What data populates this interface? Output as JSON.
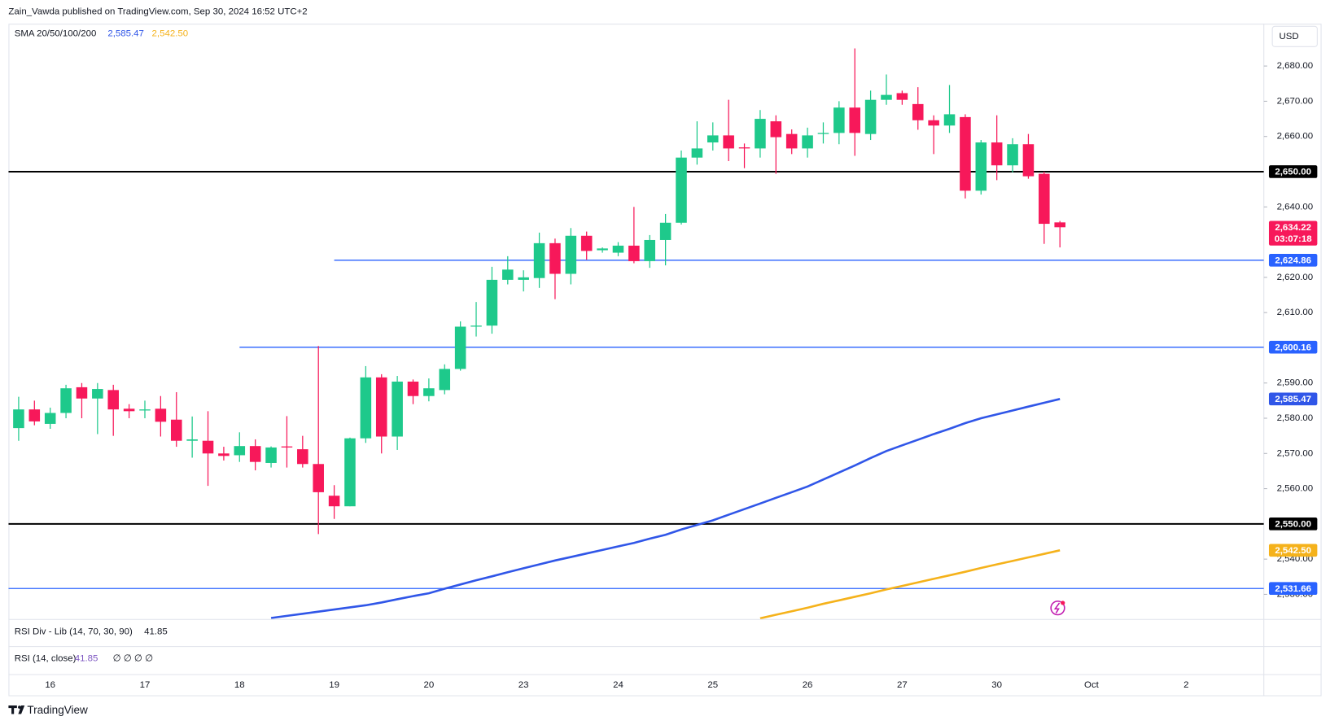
{
  "header": {
    "author_line": "Zain_Vawda published on TradingView.com, Sep 30, 2024 16:52 UTC+2"
  },
  "chart_data": {
    "type": "candlestick",
    "currency": "USD",
    "up_color": "#1ec98b",
    "down_color": "#f7185a",
    "categories": [
      null,
      null,
      "16",
      null,
      null,
      null,
      null,
      null,
      "17",
      null,
      null,
      null,
      null,
      null,
      "18",
      null,
      null,
      null,
      null,
      null,
      "19",
      null,
      null,
      null,
      null,
      null,
      "20",
      null,
      null,
      null,
      null,
      null,
      "23",
      null,
      null,
      null,
      null,
      null,
      "24",
      null,
      null,
      null,
      null,
      null,
      "25",
      null,
      null,
      null,
      null,
      null,
      "26",
      null,
      null,
      null,
      null,
      null,
      "27",
      null,
      null,
      null,
      null,
      null,
      "30",
      null,
      null,
      null,
      null,
      null,
      "Oct",
      null,
      null,
      null,
      null,
      null,
      "2",
      null,
      null,
      null,
      null
    ],
    "open": [
      2577.2,
      2582.5,
      2578.4,
      2581.5,
      2588.8,
      2585.6,
      2588.0,
      2582.7,
      2582.2,
      2582.7,
      2579.6,
      2573.6,
      2573.6,
      2570.0,
      2569.5,
      2572.1,
      2567.3,
      2572.0,
      2571.2,
      2567.0,
      2558.0,
      2555.0,
      2574.3,
      2591.6,
      2574.8,
      2590.4,
      2586.3,
      2588.0,
      2594.0,
      2606.0,
      2606.3,
      2619.3,
      2619.3,
      2619.8,
      2629.7,
      2621.0,
      2631.8,
      2627.7,
      2627.0,
      2629.0,
      2624.6,
      2630.6,
      2635.5,
      2654.0,
      2658.3,
      2660.3,
      2656.9,
      2656.6,
      2664.3,
      2660.7,
      2656.6,
      2660.7,
      2661.0,
      2668.2,
      2660.7,
      2670.4,
      2672.3,
      2669.2,
      2664.6,
      2663.1,
      2665.5,
      2644.6,
      2658.3,
      2651.8,
      2657.8,
      2649.4,
      2635.6,
      null,
      null,
      null,
      null,
      null,
      null,
      null,
      null,
      null,
      null,
      null,
      null
    ],
    "high": [
      2586.1,
      2585.0,
      2583.0,
      2589.5,
      2590.0,
      2590.0,
      2589.5,
      2584.0,
      2585.0,
      2586.3,
      2587.4,
      2580.5,
      2582.0,
      2571.9,
      2576.0,
      2574.0,
      2572.0,
      2580.6,
      2575.0,
      2600.5,
      2561.0,
      2574.5,
      2594.8,
      2592.5,
      2592.0,
      2591.0,
      2591.3,
      2595.3,
      2607.5,
      2613.0,
      2623.0,
      2626.0,
      2622.0,
      2632.7,
      2631.0,
      2634.0,
      2633.0,
      2628.5,
      2630.0,
      2640.0,
      2632.0,
      2638.0,
      2656.0,
      2664.3,
      2664.0,
      2670.4,
      2658.0,
      2667.5,
      2666.0,
      2662.0,
      2662.5,
      2664.0,
      2670.0,
      2685.0,
      2673.0,
      2677.6,
      2673.0,
      2674.0,
      2666.0,
      2674.6,
      2666.3,
      2659.0,
      2666.0,
      2659.5,
      2660.7,
      2650.0,
      2636.0,
      null,
      null,
      null,
      null,
      null,
      null,
      null,
      null,
      null,
      null,
      null,
      null
    ],
    "low": [
      2573.6,
      2578.0,
      2577.0,
      2580.0,
      2580.0,
      2575.5,
      2575.0,
      2580.0,
      2580.0,
      2574.8,
      2571.9,
      2568.8,
      2560.8,
      2568.0,
      2567.6,
      2565.2,
      2566.0,
      2566.0,
      2566.0,
      2547.1,
      2551.4,
      2555.0,
      2573.0,
      2570.0,
      2571.0,
      2584.0,
      2584.8,
      2586.8,
      2593.5,
      2603.2,
      2604.0,
      2618.0,
      2616.0,
      2617.0,
      2613.8,
      2618.0,
      2625.0,
      2627.0,
      2626.0,
      2624.0,
      2622.7,
      2623.4,
      2635.0,
      2652.0,
      2656.0,
      2653.0,
      2651.0,
      2654.0,
      2649.4,
      2655.0,
      2654.0,
      2658.0,
      2657.8,
      2654.5,
      2659.0,
      2669.0,
      2669.0,
      2661.9,
      2655.0,
      2661.0,
      2642.4,
      2643.5,
      2647.6,
      2649.8,
      2648.0,
      2629.5,
      2628.5,
      null,
      null,
      null,
      null,
      null,
      null,
      null,
      null,
      null,
      null,
      null,
      null
    ],
    "close": [
      2582.5,
      2579.1,
      2581.5,
      2588.5,
      2585.6,
      2588.3,
      2582.5,
      2582.0,
      2582.5,
      2579.0,
      2573.6,
      2574.0,
      2570.0,
      2569.3,
      2572.1,
      2567.6,
      2571.7,
      2571.7,
      2567.0,
      2559.0,
      2555.0,
      2574.3,
      2591.6,
      2574.8,
      2590.4,
      2586.3,
      2588.5,
      2594.0,
      2606.0,
      2606.3,
      2619.3,
      2622.2,
      2620.0,
      2629.7,
      2621.0,
      2631.8,
      2627.5,
      2628.2,
      2629.0,
      2624.6,
      2630.6,
      2635.5,
      2654.0,
      2656.6,
      2660.3,
      2656.6,
      2656.6,
      2665.0,
      2659.8,
      2656.6,
      2660.3,
      2661.0,
      2668.2,
      2661.0,
      2670.4,
      2671.8,
      2670.4,
      2664.6,
      2663.1,
      2666.3,
      2644.6,
      2658.3,
      2651.8,
      2657.8,
      2648.7,
      2635.2,
      2634.22,
      null,
      null,
      null,
      null,
      null,
      null,
      null,
      null,
      null,
      null,
      null,
      null
    ],
    "last_price": {
      "value": 2634.22,
      "label": "2,634.22",
      "countdown": "03:07:18"
    },
    "sma": {
      "name": "SMA 20/50/100/200",
      "lines": [
        {
          "color": "#3056e8",
          "label": "2,585.47",
          "value": 2585.47,
          "values": [
            null,
            null,
            null,
            null,
            null,
            null,
            null,
            null,
            null,
            null,
            null,
            null,
            null,
            null,
            null,
            null,
            2523.3,
            2523.9,
            2524.5,
            2525.1,
            2525.7,
            2526.3,
            2526.9,
            2527.7,
            2528.6,
            2529.5,
            2530.3,
            2531.6,
            2532.8,
            2534.0,
            2535.1,
            2536.3,
            2537.4,
            2538.5,
            2539.6,
            2540.6,
            2541.6,
            2542.6,
            2543.6,
            2544.6,
            2545.8,
            2546.9,
            2548.4,
            2549.7,
            2551.0,
            2552.6,
            2554.2,
            2555.8,
            2557.4,
            2559.0,
            2560.6,
            2562.6,
            2564.6,
            2566.6,
            2568.7,
            2570.7,
            2572.3,
            2573.9,
            2575.5,
            2577.0,
            2578.6,
            2580.0,
            2581.1,
            2582.2,
            2583.3,
            2584.4,
            2585.47,
            null,
            null,
            null,
            null,
            null,
            null,
            null,
            null,
            null,
            null,
            null,
            null
          ]
        },
        {
          "color": "#f5b21b",
          "label": "2,542.50",
          "value": 2542.5,
          "values": [
            null,
            null,
            null,
            null,
            null,
            null,
            null,
            null,
            null,
            null,
            null,
            null,
            null,
            null,
            null,
            null,
            null,
            null,
            null,
            null,
            null,
            null,
            null,
            null,
            null,
            null,
            null,
            null,
            null,
            null,
            null,
            null,
            null,
            null,
            null,
            null,
            null,
            null,
            null,
            null,
            null,
            null,
            null,
            null,
            null,
            null,
            null,
            2523.2,
            2524.2,
            2525.2,
            2526.2,
            2527.3,
            2528.3,
            2529.3,
            2530.3,
            2531.4,
            2532.4,
            2533.4,
            2534.4,
            2535.4,
            2536.4,
            2537.5,
            2538.5,
            2539.5,
            2540.5,
            2541.5,
            2542.5,
            null,
            null,
            null,
            null,
            null,
            null,
            null,
            null,
            null,
            null,
            null,
            null
          ]
        }
      ]
    },
    "levels": [
      {
        "value": 2650,
        "label": "2,650.00",
        "color": "#000000"
      },
      {
        "value": 2624.86,
        "label": "2,624.86",
        "color": "#2962ff",
        "from": 20
      },
      {
        "value": 2600.16,
        "label": "2,600.16",
        "color": "#2962ff",
        "from": 14
      },
      {
        "value": 2550,
        "label": "2,550.00",
        "color": "#000000"
      },
      {
        "value": 2531.66,
        "label": "2,531.66",
        "color": "#2962ff"
      }
    ],
    "ylim": [
      2523,
      2692
    ],
    "yticks": [
      {
        "value": 2530,
        "label": "2,530.00"
      },
      {
        "value": 2540,
        "label": "2,540.00"
      },
      {
        "value": 2560,
        "label": "2,560.00"
      },
      {
        "value": 2570,
        "label": "2,570.00"
      },
      {
        "value": 2580,
        "label": "2,580.00"
      },
      {
        "value": 2590,
        "label": "2,590.00"
      },
      {
        "value": 2610,
        "label": "2,610.00"
      },
      {
        "value": 2620,
        "label": "2,620.00"
      },
      {
        "value": 2640,
        "label": "2,640.00"
      },
      {
        "value": 2660,
        "label": "2,660.00"
      },
      {
        "value": 2670,
        "label": "2,670.00"
      },
      {
        "value": 2680,
        "label": "2,680.00"
      }
    ],
    "panes": [
      {
        "title": "RSI Div - Lib (14, 70, 30, 90)",
        "value": 41.85
      },
      {
        "title": "RSI (14, close)",
        "value": 41.85,
        "extras": "∅ ∅ ∅ ∅"
      }
    ]
  },
  "footer": {
    "brand": "TradingView"
  }
}
